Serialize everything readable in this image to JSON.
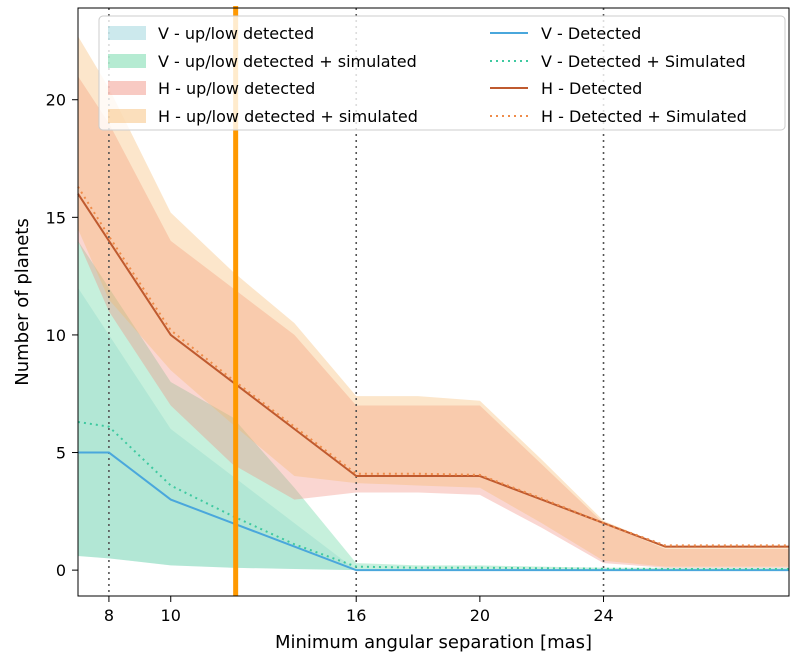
{
  "chart_data": {
    "type": "area",
    "xlabel": "Minimum angular separation [mas]",
    "ylabel": "Number of planets",
    "xlim": [
      7,
      30
    ],
    "ylim": [
      -1.1,
      23.9
    ],
    "xticks": [
      8,
      10,
      16,
      20,
      24
    ],
    "yticks": [
      0,
      5,
      10,
      15,
      20
    ],
    "vlines": [
      8,
      16,
      24
    ],
    "marker_line": {
      "x": 12.1,
      "color": "#ff9900"
    },
    "x": [
      7,
      8,
      10,
      12,
      14,
      16,
      18,
      20,
      22,
      24,
      26,
      28,
      30
    ],
    "bands": [
      {
        "name": "V - up/low detected",
        "color": "#8ecfd6",
        "opacity": 0.28,
        "upper": [
          12,
          10,
          6,
          4,
          2,
          0,
          0,
          0,
          0,
          0,
          0,
          0,
          0
        ],
        "lower": [
          0.6,
          0.5,
          0.2,
          0.1,
          0.05,
          0,
          0,
          0,
          0,
          0,
          0,
          0,
          0
        ]
      },
      {
        "name": "V - up/low detected + simulated",
        "color": "#5cd39b",
        "opacity": 0.35,
        "upper": [
          14,
          12,
          8,
          6.5,
          3.5,
          0.3,
          0.2,
          0.2,
          0.15,
          0.1,
          0.1,
          0.1,
          0.1
        ],
        "lower": [
          0.6,
          0.5,
          0.2,
          0.1,
          0.05,
          0,
          0,
          0,
          0,
          0,
          0,
          0,
          0
        ]
      },
      {
        "name": "H - up/low detected",
        "color": "#f08a7a",
        "opacity": 0.35,
        "upper": [
          21,
          19,
          14,
          12,
          10,
          7,
          7,
          7,
          4.5,
          2,
          0.9,
          0.9,
          0.9
        ],
        "lower": [
          14,
          11,
          7,
          4.5,
          3,
          3.3,
          3.3,
          3.2,
          1.8,
          0.3,
          0.1,
          0.1,
          0.1
        ]
      },
      {
        "name": "H - up/low detected + simulated",
        "color": "#f6b86a",
        "opacity": 0.35,
        "upper": [
          22.7,
          20.5,
          15.2,
          12.7,
          10.5,
          7.4,
          7.4,
          7.2,
          4.7,
          2.1,
          1.0,
          1.0,
          1.0
        ],
        "lower": [
          14.5,
          11.5,
          8.5,
          6.2,
          4,
          3.7,
          3.6,
          3.5,
          2.0,
          0.4,
          0.15,
          0.15,
          0.15
        ]
      }
    ],
    "series": [
      {
        "name": "V - Detected",
        "color": "#4aa7dc",
        "dash": "solid",
        "values": [
          5,
          5,
          3,
          2,
          1,
          0,
          0,
          0,
          0,
          0,
          0,
          0,
          0
        ]
      },
      {
        "name": "V - Detected + Simulated",
        "color": "#3ec9a0",
        "dash": "dotted",
        "values": [
          6.3,
          6.1,
          3.6,
          2.3,
          1.1,
          0.15,
          0.1,
          0.1,
          0.08,
          0.06,
          0.05,
          0.05,
          0.05
        ]
      },
      {
        "name": "H - Detected",
        "color": "#bf5a2f",
        "dash": "solid",
        "values": [
          16,
          14,
          10,
          8,
          6,
          4,
          4,
          4,
          3,
          2,
          1,
          1,
          1
        ]
      },
      {
        "name": "H - Detected + Simulated",
        "color": "#ef8c4a",
        "dash": "dotted",
        "values": [
          16.3,
          14.2,
          10.2,
          8.1,
          6.1,
          4.1,
          4.1,
          4.05,
          3.05,
          2.0,
          1.05,
          1.05,
          1.05
        ]
      }
    ],
    "legend": {
      "placement": "top",
      "columns": 2
    },
    "grid": false
  }
}
